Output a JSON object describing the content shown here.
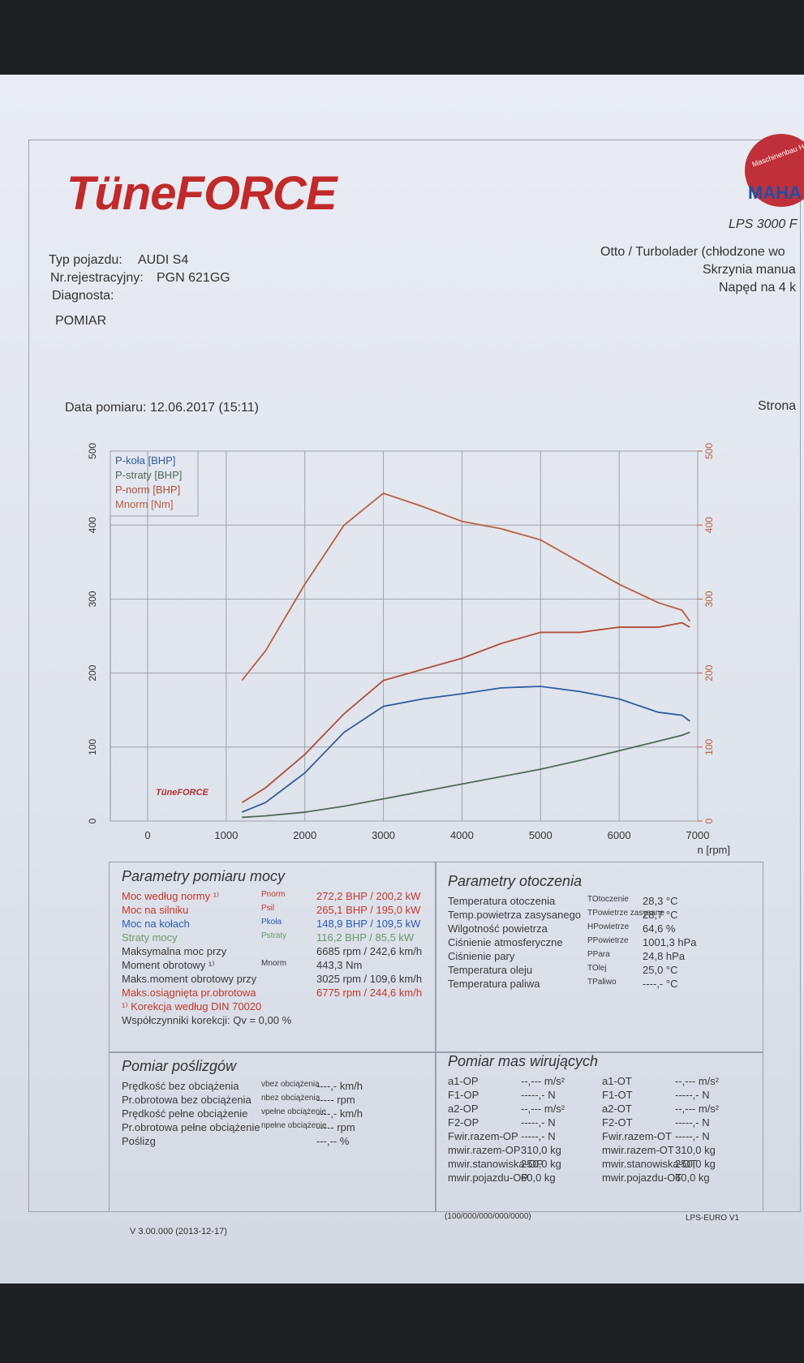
{
  "header": {
    "logo": "TüneFORCE",
    "emblem_top": "Maschinenbau Haldenwang",
    "emblem_brand": "MAHA",
    "model": "LPS 3000 F"
  },
  "vehicle": {
    "left": [
      [
        "Typ pojazdu:",
        "AUDI S4"
      ],
      [
        "Nr.rejestracyjny:",
        "PGN 621GG"
      ],
      [
        "Diagnosta:"
      ]
    ],
    "right": [
      "Otto / Turbolader (chłodzone wo",
      "Skrzynia manua",
      "Napęd na 4 k"
    ],
    "section": "POMIAR",
    "date": "Data pomiaru: 12.06.2017 (15:11)",
    "page": "Strona"
  },
  "chart_data": {
    "type": "line",
    "watermark": "TüneFORCE",
    "x_label": "n [rpm]",
    "x": [
      1200,
      1500,
      2000,
      2500,
      3000,
      3500,
      4000,
      4500,
      5000,
      5500,
      6000,
      6500,
      6800,
      6900
    ],
    "xlim": [
      0,
      7000
    ],
    "xticks": [
      0,
      1000,
      2000,
      3000,
      4000,
      5000,
      6000,
      7000
    ],
    "ylim": [
      0,
      500
    ],
    "yticks": [
      0,
      100,
      200,
      300,
      400,
      500
    ],
    "y2lim": [
      0,
      500
    ],
    "y2ticks": [
      0,
      100,
      200,
      300,
      400,
      500
    ],
    "grid": true,
    "legend": "top-left",
    "series": [
      {
        "name": "P-koła [BHP]",
        "color": "#2f5d9e",
        "values": [
          12,
          25,
          65,
          120,
          155,
          165,
          172,
          180,
          182,
          175,
          165,
          147,
          143,
          135
        ]
      },
      {
        "name": "P-straty [BHP]",
        "color": "#4f6a55",
        "values": [
          5,
          7,
          12,
          20,
          30,
          40,
          50,
          60,
          70,
          82,
          95,
          108,
          116,
          120
        ]
      },
      {
        "name": "P-norm [BHP]",
        "color": "#b0503a",
        "values": [
          25,
          45,
          90,
          145,
          190,
          205,
          220,
          240,
          255,
          255,
          262,
          262,
          268,
          262
        ]
      },
      {
        "name": "Mnorm [Nm]",
        "color": "#b8603e",
        "axis": "y2",
        "values": [
          190,
          230,
          320,
          400,
          443,
          425,
          405,
          395,
          380,
          350,
          320,
          295,
          285,
          270
        ]
      }
    ]
  },
  "power": {
    "title": "Parametry pomiaru mocy",
    "rows": [
      [
        "Moc według normy ¹⁾",
        "Pnorm",
        "272,2 BHP / 200,2 kW"
      ],
      [
        "Moc na silniku",
        "Psil",
        "265,1 BHP / 195,0 kW"
      ],
      [
        "Moc na kołach",
        "Pkoła",
        "148,9 BHP / 109,5 kW"
      ],
      [
        "Straty mocy",
        "Pstraty",
        "116,2 BHP / 85,5 kW"
      ],
      [
        "Maksymalna moc przy",
        "6685 rpm / 242,6 km/h"
      ],
      [
        "Moment obrotowy ¹⁾",
        "Mnorm",
        "443,3 Nm"
      ],
      [
        "Maks.moment obrotowy przy",
        "3025 rpm / 109,6 km/h"
      ],
      [
        "Maks.osiągnięta pr.obrotowa",
        "6775 rpm / 244,6 km/h"
      ],
      [
        "¹⁾ Korekcja według DIN 70020"
      ],
      [
        "Współczynniki korekcji: Qv = 0,00 %"
      ]
    ]
  },
  "ambient": {
    "title": "Parametry otoczenia",
    "rows": [
      [
        "Temperatura otoczenia",
        "TOtoczenie",
        "28,3 °C"
      ],
      [
        "Temp.powietrza zasysanego",
        "TPowietrze zasysane",
        "28,7 °C"
      ],
      [
        "Wilgotność powietrza",
        "HPowietrze",
        "64,6 %"
      ],
      [
        "Ciśnienie atmosferyczne",
        "PPowietrze",
        "1001,3 hPa"
      ],
      [
        "Ciśnienie pary",
        "PPara",
        "24,8 hPa"
      ],
      [
        "Temperatura oleju",
        "TOlej",
        "25,0 °C"
      ],
      [
        "Temperatura paliwa",
        "TPaliwo",
        "----,- °C"
      ]
    ]
  },
  "slip": {
    "title": "Pomiar poślizgów",
    "rows": [
      [
        "Prędkość bez obciążenia",
        "vbez obciążenia",
        "----,- km/h"
      ],
      [
        "Pr.obrotowa bez obciążenia",
        "nbez obciążenia",
        "----- rpm"
      ],
      [
        "Prędkość pełne obciążenie",
        "vpełne obciążenie",
        "----,- km/h"
      ],
      [
        "Pr.obrotowa pełne obciążenie",
        "npełne obciążenie",
        "----- rpm"
      ],
      [
        "Poślizg",
        "---,-- %"
      ]
    ]
  },
  "masses": {
    "title": "Pomiar mas wirujących",
    "rows": [
      [
        "a1-OP",
        "--,--- m/s²",
        "a1-OT",
        "--,--- m/s²"
      ],
      [
        "F1-OP",
        "-----,- N",
        "F1-OT",
        "-----,- N"
      ],
      [
        "a2-OP",
        "--,--- m/s²",
        "a2-OT",
        "--,--- m/s²"
      ],
      [
        "F2-OP",
        "-----,- N",
        "F2-OT",
        "-----,- N"
      ],
      [
        "Fwir.razem-OP",
        "-----,- N",
        "Fwir.razem-OT",
        "-----,- N"
      ],
      [
        "mwir.razem-OP",
        "310,0 kg",
        "mwir.razem-OT",
        "310,0 kg"
      ],
      [
        "mwir.stanowiska-OP",
        "250,0 kg",
        "mwir.stanowiska-OT",
        "250,0 kg"
      ],
      [
        "mwir.pojazdu-OP",
        "60,0 kg",
        "mwir.pojazdu-OT",
        "60,0 kg"
      ]
    ]
  },
  "footer": {
    "version": "V 3.00.000 (2013-12-17)",
    "code": "(100/000/000/000/0000)",
    "software": "LPS-EURO V1"
  }
}
